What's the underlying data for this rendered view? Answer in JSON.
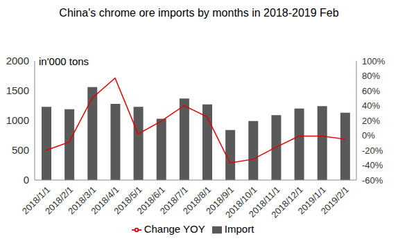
{
  "chart_data": {
    "type": "bar",
    "title": "China's chrome ore imports by months in 2018-2019 Feb",
    "ylabel": "in'000 tons",
    "categories": [
      "2018/1/1",
      "2018/2/1",
      "2018/3/1",
      "2018/4/1",
      "2018/5/1",
      "2018/6/1",
      "2018/7/1",
      "2018/8/1",
      "2018/9/1",
      "2018/10/1",
      "2018/11/1",
      "2018/12/1",
      "2019/1/1",
      "2019/2/1"
    ],
    "series": [
      {
        "name": "Import",
        "type": "bar",
        "color": "#595959",
        "values": [
          1230,
          1190,
          1560,
          1280,
          1230,
          1030,
          1370,
          1270,
          840,
          990,
          1090,
          1200,
          1240,
          1130
        ]
      },
      {
        "name": "Change YOY",
        "type": "line",
        "axis": "y2",
        "color": "#e00000",
        "marker": "none",
        "line_style": "solid",
        "values": [
          -20,
          -9,
          50,
          77,
          2,
          19,
          40,
          25,
          -37,
          -32,
          -16,
          -1,
          -1,
          -5
        ]
      }
    ],
    "ylim": [
      0,
      2000
    ],
    "yticks": [
      0,
      500,
      1000,
      1500,
      2000
    ],
    "y2lim": [
      -60,
      100
    ],
    "y2ticks": [
      {
        "value": -60,
        "label": "-60%"
      },
      {
        "value": -40,
        "label": "-40%"
      },
      {
        "value": -20,
        "label": "-20%"
      },
      {
        "value": 0,
        "label": "0%"
      },
      {
        "value": 20,
        "label": "20%"
      },
      {
        "value": 40,
        "label": "40%"
      },
      {
        "value": 60,
        "label": "60%"
      },
      {
        "value": 80,
        "label": "80%"
      },
      {
        "value": 100,
        "label": "100%"
      }
    ],
    "grid": false,
    "legend": "bottom"
  }
}
